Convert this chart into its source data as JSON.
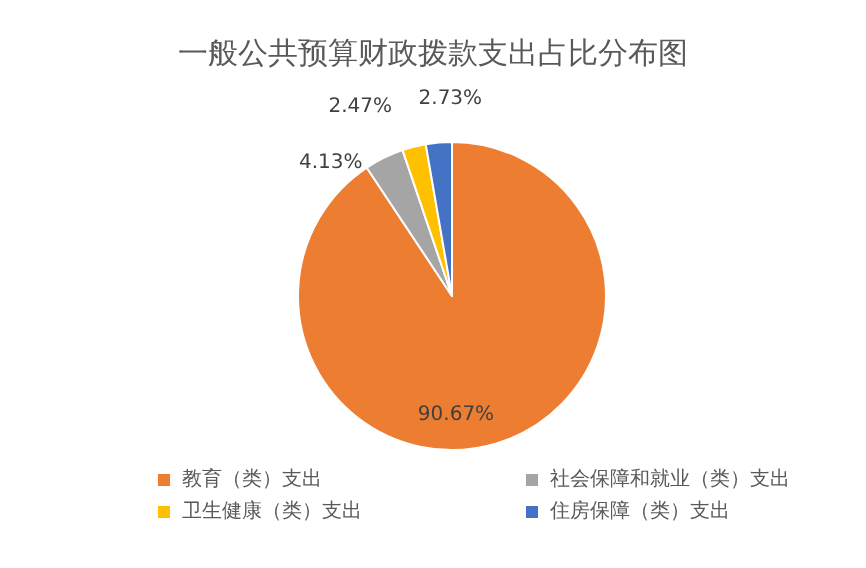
{
  "chart_data": {
    "type": "pie",
    "title": "一般公共预算财政拨款支出占比分布图",
    "categories": [
      "教育（类）支出",
      "社会保障和就业（类）支出",
      "卫生健康（类）支出",
      "住房保障（类）支出"
    ],
    "values": [
      90.67,
      4.13,
      2.47,
      2.73
    ],
    "colors": [
      "#ed7d31",
      "#a5a5a5",
      "#ffc000",
      "#4472c4"
    ],
    "value_labels": [
      "90.67%",
      "4.13%",
      "2.47%",
      "2.73%"
    ],
    "legend": "bottom"
  }
}
